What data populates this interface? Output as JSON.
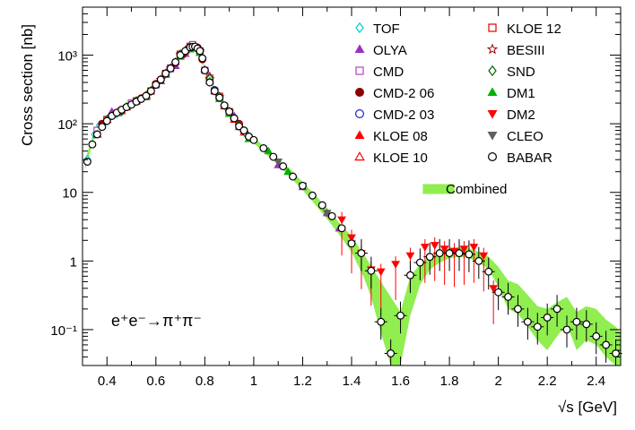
{
  "chart_data": {
    "type": "scatter",
    "title": "",
    "xlabel": "√s [GeV]",
    "ylabel": "Cross section [nb]",
    "xlim": [
      0.3,
      2.5
    ],
    "ylim": [
      0.03,
      5000
    ],
    "yscale": "log",
    "x_ticks": [
      "0.4",
      "0.6",
      "0.8",
      "1",
      "1.2",
      "1.4",
      "1.6",
      "1.8",
      "2",
      "2.2",
      "2.4"
    ],
    "y_ticks": [
      "10⁻¹",
      "1",
      "10",
      "10²",
      "10³"
    ],
    "annotation": "e⁺e⁻→π⁺π⁻",
    "legend_position": "top-right",
    "legend": [
      {
        "name": "TOF",
        "marker": "diamond-open",
        "color": "#00c8c8"
      },
      {
        "name": "OLYA",
        "marker": "triangle-up-filled",
        "color": "#9b30c0"
      },
      {
        "name": "CMD",
        "marker": "square-open",
        "color": "#b040c0"
      },
      {
        "name": "CMD-2 06",
        "marker": "circle-filled",
        "color": "#8b0000"
      },
      {
        "name": "CMD-2 03",
        "marker": "circle-open",
        "color": "#2020c0"
      },
      {
        "name": "KLOE 08",
        "marker": "triangle-up-filled",
        "color": "#ff0000"
      },
      {
        "name": "KLOE 10",
        "marker": "triangle-up-open",
        "color": "#ff0000"
      },
      {
        "name": "KLOE 12",
        "marker": "square-open",
        "color": "#e00000"
      },
      {
        "name": "BESIII",
        "marker": "star-open",
        "color": "#a00000"
      },
      {
        "name": "SND",
        "marker": "diamond-open",
        "color": "#006400"
      },
      {
        "name": "DM1",
        "marker": "triangle-up-filled",
        "color": "#00b000"
      },
      {
        "name": "DM2",
        "marker": "triangle-down-filled",
        "color": "#ff0000"
      },
      {
        "name": "CLEO",
        "marker": "triangle-down-filled",
        "color": "#606060"
      },
      {
        "name": "BABAR",
        "marker": "circle-open",
        "color": "#000000"
      },
      {
        "name": "Combined",
        "marker": "band",
        "color": "#90ee50"
      }
    ],
    "combined_band": {
      "x": [
        0.31,
        0.35,
        0.4,
        0.45,
        0.5,
        0.55,
        0.6,
        0.65,
        0.7,
        0.74,
        0.76,
        0.78,
        0.8,
        0.85,
        0.9,
        0.95,
        1.0,
        1.05,
        1.1,
        1.15,
        1.2,
        1.25,
        1.3,
        1.35,
        1.4,
        1.45,
        1.48,
        1.52,
        1.56,
        1.6,
        1.64,
        1.68,
        1.72,
        1.76,
        1.8,
        1.84,
        1.88,
        1.92,
        1.96,
        2.0,
        2.04,
        2.08,
        2.12,
        2.16,
        2.2,
        2.24,
        2.28,
        2.32,
        2.36,
        2.4,
        2.44,
        2.48,
        2.5
      ],
      "center": [
        25,
        75,
        120,
        155,
        200,
        260,
        380,
        620,
        1050,
        1300,
        1320,
        1150,
        600,
        280,
        150,
        90,
        58,
        40,
        28,
        19,
        12.5,
        8,
        5,
        3,
        1.8,
        0.9,
        0.55,
        0.25,
        0.12,
        0.07,
        0.35,
        0.65,
        0.95,
        1.15,
        1.3,
        1.35,
        1.3,
        1.15,
        0.95,
        0.6,
        0.35,
        0.3,
        0.2,
        0.13,
        0.11,
        0.15,
        0.2,
        0.1,
        0.13,
        0.12,
        0.08,
        0.06,
        0.05
      ],
      "low": [
        21,
        66,
        108,
        140,
        182,
        238,
        350,
        575,
        985,
        1220,
        1245,
        1080,
        560,
        255,
        135,
        81,
        52,
        36,
        25,
        16.5,
        10.8,
        6.7,
        4.1,
        2.4,
        1.35,
        0.58,
        0.3,
        0.09,
        0.03,
        0.03,
        0.16,
        0.45,
        0.75,
        0.95,
        1.1,
        1.15,
        1.1,
        0.95,
        0.76,
        0.42,
        0.2,
        0.17,
        0.11,
        0.07,
        0.05,
        0.08,
        0.12,
        0.05,
        0.07,
        0.06,
        0.04,
        0.03,
        0.03
      ],
      "high": [
        29,
        84,
        132,
        170,
        218,
        282,
        410,
        665,
        1115,
        1380,
        1395,
        1220,
        640,
        305,
        165,
        99,
        64,
        44,
        31,
        21.5,
        14.2,
        9.3,
        5.9,
        3.6,
        2.3,
        1.25,
        0.85,
        0.5,
        0.3,
        0.18,
        0.6,
        0.9,
        1.18,
        1.38,
        1.52,
        1.57,
        1.52,
        1.36,
        1.16,
        0.82,
        0.52,
        0.46,
        0.32,
        0.22,
        0.2,
        0.25,
        0.3,
        0.18,
        0.22,
        0.2,
        0.14,
        0.11,
        0.09
      ]
    },
    "series": [
      {
        "name": "TOF",
        "x": [
          0.32,
          0.35,
          0.37,
          0.4,
          0.42,
          0.44,
          0.46
        ],
        "y": [
          30,
          70,
          95,
          110,
          135,
          140,
          150
        ]
      },
      {
        "name": "OLYA",
        "x": [
          0.42,
          0.56,
          0.62,
          0.68,
          0.72,
          0.75,
          0.78,
          0.82,
          0.86,
          0.92,
          0.97,
          1.1,
          1.2,
          1.3,
          1.35
        ],
        "y": [
          150,
          250,
          420,
          700,
          1050,
          1300,
          1250,
          500,
          250,
          130,
          75,
          25,
          12,
          5,
          3
        ]
      },
      {
        "name": "CMD",
        "x": [
          0.36,
          0.5,
          0.6,
          0.66,
          0.7,
          0.74,
          0.75,
          0.78,
          0.8,
          0.84
        ],
        "y": [
          80,
          200,
          370,
          650,
          1000,
          1350,
          1420,
          1150,
          600,
          300
        ]
      },
      {
        "name": "CMD-2 06",
        "x": [
          0.38,
          0.42,
          0.48,
          0.54,
          0.6,
          0.64,
          0.68,
          0.71,
          0.73,
          0.75,
          0.77,
          0.79,
          0.82,
          0.86,
          0.9,
          0.94,
          0.98
        ],
        "y": [
          100,
          130,
          175,
          235,
          380,
          540,
          780,
          1020,
          1220,
          1320,
          1290,
          870,
          440,
          240,
          150,
          100,
          65
        ]
      },
      {
        "name": "CMD-2 03",
        "x": [
          0.62,
          0.66,
          0.7,
          0.74,
          0.76,
          0.78,
          0.8,
          0.84,
          0.88,
          0.92,
          0.96
        ],
        "y": [
          440,
          640,
          1030,
          1300,
          1320,
          1150,
          600,
          310,
          185,
          120,
          78
        ]
      },
      {
        "name": "KLOE 08",
        "x": [
          0.6,
          0.64,
          0.68,
          0.72,
          0.76,
          0.8,
          0.84,
          0.88,
          0.92,
          0.96
        ],
        "y": [
          380,
          540,
          800,
          1150,
          1300,
          620,
          300,
          180,
          115,
          75
        ]
      },
      {
        "name": "KLOE 10",
        "x": [
          0.36,
          0.4,
          0.44,
          0.48,
          0.52,
          0.56
        ],
        "y": [
          70,
          115,
          145,
          175,
          215,
          260
        ]
      },
      {
        "name": "KLOE 12",
        "x": [
          0.4,
          0.46,
          0.52,
          0.58,
          0.64,
          0.7,
          0.74,
          0.76,
          0.78,
          0.82,
          0.86,
          0.9,
          0.94
        ],
        "y": [
          115,
          155,
          215,
          300,
          540,
          1030,
          1300,
          1310,
          1140,
          460,
          250,
          150,
          95
        ]
      },
      {
        "name": "BESIII",
        "x": [
          0.62,
          0.66,
          0.7,
          0.74,
          0.76,
          0.78,
          0.82,
          0.86,
          0.9
        ],
        "y": [
          440,
          640,
          1030,
          1300,
          1320,
          1150,
          450,
          245,
          150
        ]
      },
      {
        "name": "SND",
        "x": [
          0.4,
          0.46,
          0.52,
          0.58,
          0.64,
          0.7,
          0.74,
          0.78,
          0.82,
          0.86,
          0.9,
          0.94,
          0.97
        ],
        "y": [
          115,
          155,
          215,
          300,
          540,
          1030,
          1300,
          1150,
          460,
          250,
          150,
          95,
          70
        ]
      },
      {
        "name": "DM1",
        "x": [
          0.48,
          0.56,
          0.64,
          0.7,
          0.74,
          0.78,
          0.82,
          0.86,
          0.9,
          0.94,
          0.98,
          1.06,
          1.14
        ],
        "y": [
          180,
          245,
          520,
          950,
          1220,
          1080,
          420,
          230,
          140,
          90,
          60,
          40,
          20
        ]
      },
      {
        "name": "DM2",
        "x": [
          1.36,
          1.4,
          1.44,
          1.48,
          1.52,
          1.58,
          1.64,
          1.7,
          1.74,
          1.78,
          1.82,
          1.86,
          1.9,
          1.94,
          1.98
        ],
        "y": [
          4.0,
          2.2,
          1.3,
          0.75,
          0.7,
          0.9,
          1.2,
          1.6,
          1.7,
          1.5,
          1.4,
          1.5,
          1.6,
          1.2,
          0.4
        ]
      },
      {
        "name": "CLEO",
        "x": [
          1.1,
          1.2,
          1.3,
          1.4
        ],
        "y": [
          28,
          12.5,
          5,
          1.8
        ]
      },
      {
        "name": "BABAR",
        "x": [
          0.32,
          0.34,
          0.36,
          0.38,
          0.4,
          0.42,
          0.44,
          0.46,
          0.48,
          0.5,
          0.52,
          0.54,
          0.56,
          0.58,
          0.6,
          0.62,
          0.64,
          0.66,
          0.68,
          0.7,
          0.72,
          0.74,
          0.75,
          0.76,
          0.77,
          0.78,
          0.79,
          0.8,
          0.82,
          0.84,
          0.86,
          0.88,
          0.9,
          0.92,
          0.94,
          0.96,
          0.98,
          1.0,
          1.04,
          1.08,
          1.12,
          1.16,
          1.2,
          1.24,
          1.28,
          1.32,
          1.36,
          1.4,
          1.44,
          1.48,
          1.52,
          1.56,
          1.6,
          1.64,
          1.68,
          1.72,
          1.76,
          1.8,
          1.84,
          1.88,
          1.92,
          1.96,
          2.0,
          2.04,
          2.08,
          2.12,
          2.16,
          2.2,
          2.24,
          2.28,
          2.32,
          2.36,
          2.4,
          2.44,
          2.48
        ],
        "y": [
          28,
          50,
          70,
          90,
          110,
          130,
          145,
          160,
          175,
          190,
          210,
          230,
          255,
          300,
          370,
          440,
          540,
          640,
          790,
          1000,
          1150,
          1300,
          1320,
          1330,
          1250,
          1150,
          900,
          600,
          400,
          300,
          240,
          185,
          150,
          120,
          92,
          80,
          65,
          58,
          44,
          33,
          24,
          17,
          12.5,
          9,
          6.5,
          4.5,
          3,
          1.8,
          1.3,
          0.72,
          0.13,
          0.045,
          0.16,
          0.62,
          0.95,
          1.15,
          1.3,
          1.3,
          1.3,
          1.25,
          1.0,
          0.7,
          0.35,
          0.3,
          0.2,
          0.13,
          0.11,
          0.15,
          0.2,
          0.1,
          0.13,
          0.12,
          0.08,
          0.06,
          0.045
        ]
      }
    ]
  }
}
